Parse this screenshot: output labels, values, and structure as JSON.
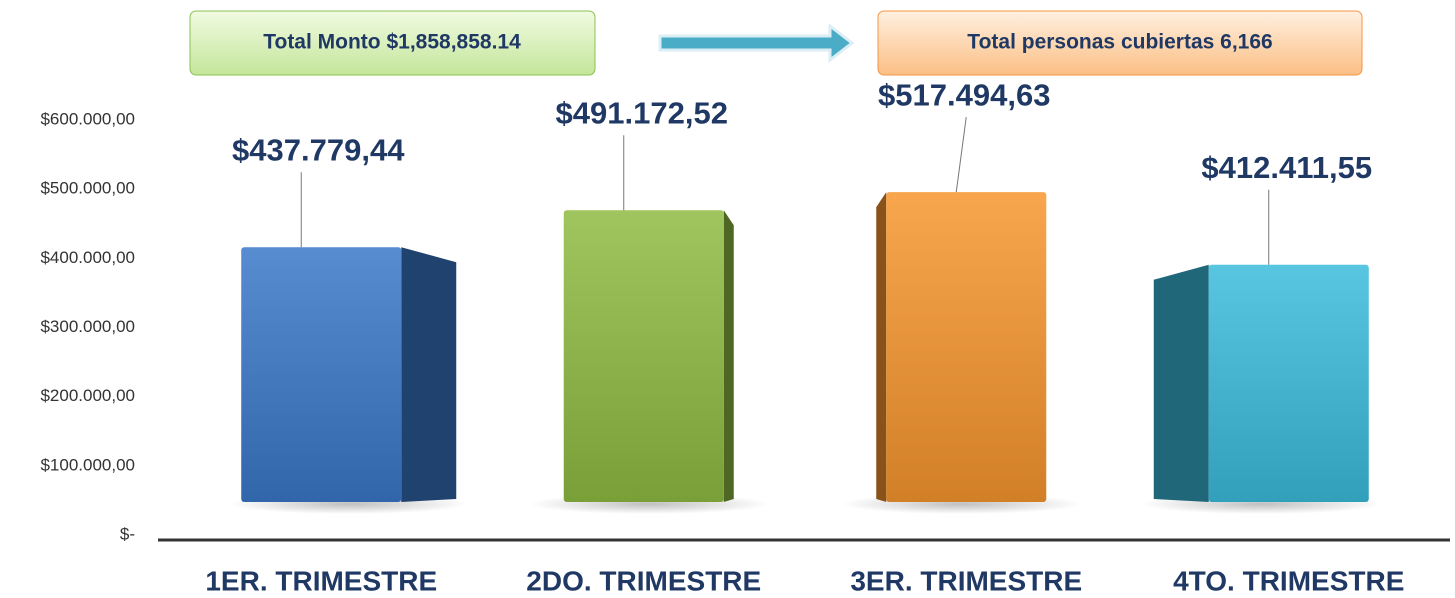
{
  "chart_data": {
    "type": "bar3d",
    "annotations": [
      "Total Monto $1,858,858.14",
      "Total personas cubiertas  6,166"
    ],
    "categories": [
      "1ER. TRIMESTRE",
      "2DO. TRIMESTRE",
      "3ER. TRIMESTRE",
      "4TO. TRIMESTRE"
    ],
    "values": [
      437779.44,
      491172.52,
      517494.63,
      412411.55
    ],
    "value_labels": [
      "$437.779,44",
      "$491.172,52",
      "$517.494,63",
      "$412.411,55"
    ],
    "colors": [
      "#3a78c9",
      "#8fbb42",
      "#f7962f",
      "#3bbbdc"
    ],
    "ylim": [
      0,
      600000
    ],
    "yticks": [
      {
        "value": 0,
        "label": "$-"
      },
      {
        "value": 100000,
        "label": "$100.000,00"
      },
      {
        "value": 200000,
        "label": "$200.000,00"
      },
      {
        "value": 300000,
        "label": "$300.000,00"
      },
      {
        "value": 400000,
        "label": "$400.000,00"
      },
      {
        "value": 500000,
        "label": "$500.000,00"
      },
      {
        "value": 600000,
        "label": "$600.000,00"
      }
    ]
  }
}
